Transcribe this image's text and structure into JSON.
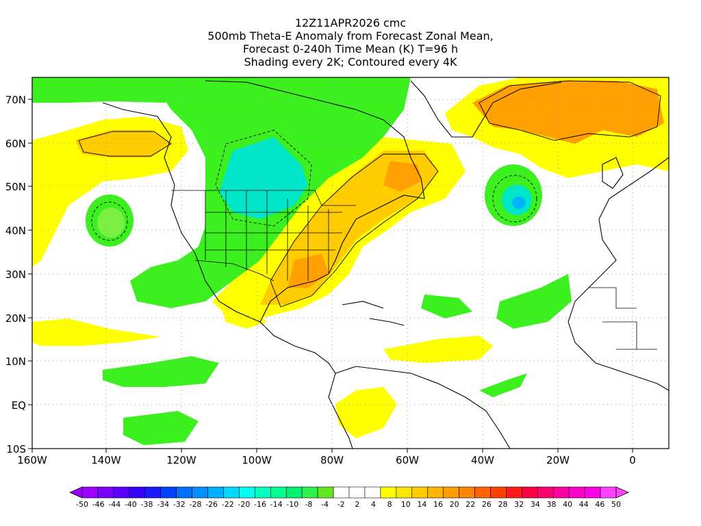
{
  "title": {
    "line1": "12Z11APR2026 cmc",
    "line2": "500mb Theta-E Anomaly from Forecast Zonal Mean,",
    "line3": "Forecast 0-240h Time Mean (K) T=96 h",
    "line4": "Shading every 2K; Contoured every 4K"
  },
  "map": {
    "lon_range": [
      -160,
      10
    ],
    "lat_range": [
      -10,
      75
    ],
    "lon_ticks": [
      "160W",
      "140W",
      "120W",
      "100W",
      "80W",
      "60W",
      "40W",
      "20W",
      "0"
    ],
    "lat_ticks": [
      "10S",
      "EQ",
      "10N",
      "20N",
      "30N",
      "40N",
      "50N",
      "60N",
      "70N"
    ]
  },
  "colorbar": {
    "labels": [
      "-50",
      "-46",
      "-44",
      "-40",
      "-38",
      "-34",
      "-32",
      "-28",
      "-26",
      "-22",
      "-20",
      "-16",
      "-14",
      "-10",
      "-8",
      "-4",
      "-2",
      "2",
      "4",
      "8",
      "10",
      "14",
      "16",
      "20",
      "22",
      "26",
      "28",
      "32",
      "34",
      "38",
      "40",
      "44",
      "46",
      "50"
    ],
    "colors": [
      "#9a00ff",
      "#7a00ff",
      "#5a00ff",
      "#3a00ff",
      "#1a1aff",
      "#0040ff",
      "#0070ff",
      "#0090ff",
      "#00b0ff",
      "#00d8ff",
      "#00ffee",
      "#00ffc0",
      "#00ff90",
      "#00f070",
      "#30f050",
      "#60e820",
      "#ffffff",
      "#ffffff",
      "#ffffff",
      "#ffff00",
      "#ffe400",
      "#ffcc00",
      "#ffb400",
      "#ff9c00",
      "#ff8400",
      "#ff6400",
      "#ff4000",
      "#ff1a1a",
      "#ff0040",
      "#ff0070",
      "#ff00a0",
      "#ff00c8",
      "#ff00e8",
      "#ff40ff"
    ]
  },
  "colors": {
    "green": "#3cf020",
    "light_green": "#7cf040",
    "yellow": "#ffff00",
    "gold": "#ffcc00",
    "orange": "#ffa000",
    "cyan": "#00e6c8",
    "blue": "#00b4ff"
  }
}
